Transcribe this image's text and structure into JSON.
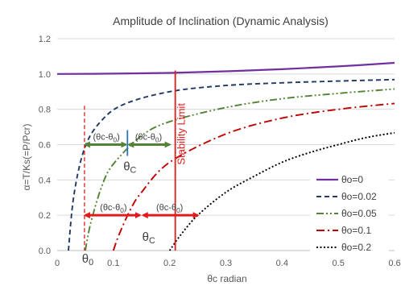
{
  "chart_data": {
    "type": "line",
    "title": "Amplitude of Inclination (Dynamic Analysis)",
    "xlabel": "θc radian",
    "ylabel": "α=T/Ks(=P/Pcr)",
    "xlim": [
      0,
      0.6
    ],
    "ylim": [
      0,
      1.2
    ],
    "x_ticks": [
      "0",
      "0.1",
      "0.2",
      "0.3",
      "0.4",
      "0.5",
      "0.6"
    ],
    "y_ticks": [
      "0.0",
      "0.2",
      "0.4",
      "0.6",
      "0.8",
      "1.0",
      "1.2"
    ],
    "grid": "horizontal",
    "legend": "bottom-right",
    "series": [
      {
        "name": "θo=0",
        "color": "#7030a0",
        "dash": "solid",
        "x": [
          0,
          0.1,
          0.2,
          0.3,
          0.4,
          0.5,
          0.6
        ],
        "y": [
          1.0,
          1.002,
          1.006,
          1.015,
          1.027,
          1.043,
          1.063
        ]
      },
      {
        "name": "θo=0.02",
        "color": "#1f3864",
        "dash": "dash",
        "x": [
          0.02,
          0.03,
          0.05,
          0.08,
          0.12,
          0.2,
          0.3,
          0.4,
          0.5,
          0.6
        ],
        "y": [
          0.0,
          0.32,
          0.59,
          0.74,
          0.83,
          0.9,
          0.935,
          0.95,
          0.96,
          0.968
        ]
      },
      {
        "name": "θo=0.05",
        "color": "#548235",
        "dash": "dashdotdot",
        "x": [
          0.05,
          0.06,
          0.08,
          0.1,
          0.15,
          0.2,
          0.3,
          0.4,
          0.5,
          0.6
        ],
        "y": [
          0.0,
          0.16,
          0.37,
          0.49,
          0.65,
          0.73,
          0.81,
          0.86,
          0.89,
          0.915
        ]
      },
      {
        "name": "θo=0.1",
        "color": "#c00000",
        "dash": "dashdot",
        "x": [
          0.1,
          0.11,
          0.13,
          0.15,
          0.2,
          0.3,
          0.4,
          0.5,
          0.6
        ],
        "y": [
          0.0,
          0.09,
          0.23,
          0.33,
          0.5,
          0.66,
          0.75,
          0.8,
          0.833
        ]
      },
      {
        "name": "θo=0.2",
        "color": "#000000",
        "dash": "dot",
        "x": [
          0.2,
          0.22,
          0.25,
          0.3,
          0.35,
          0.4,
          0.45,
          0.5,
          0.55,
          0.6
        ],
        "y": [
          0.0,
          0.09,
          0.2,
          0.33,
          0.42,
          0.5,
          0.556,
          0.6,
          0.64,
          0.667
        ]
      }
    ],
    "annotations": {
      "stability_limit_label": "Stability Limit",
      "stability_limit_x": 0.21,
      "theta0_label": "θ0",
      "thetac_label": "θC",
      "theta0_line_x": 0.05,
      "diff_label": "(θc-θ0)",
      "green_arrow": {
        "left": 0.05,
        "mid": 0.125,
        "right": 0.2,
        "y": 0.6
      },
      "red_arrow": {
        "left": 0.05,
        "mid": 0.15,
        "right": 0.25,
        "y": 0.2
      }
    }
  }
}
